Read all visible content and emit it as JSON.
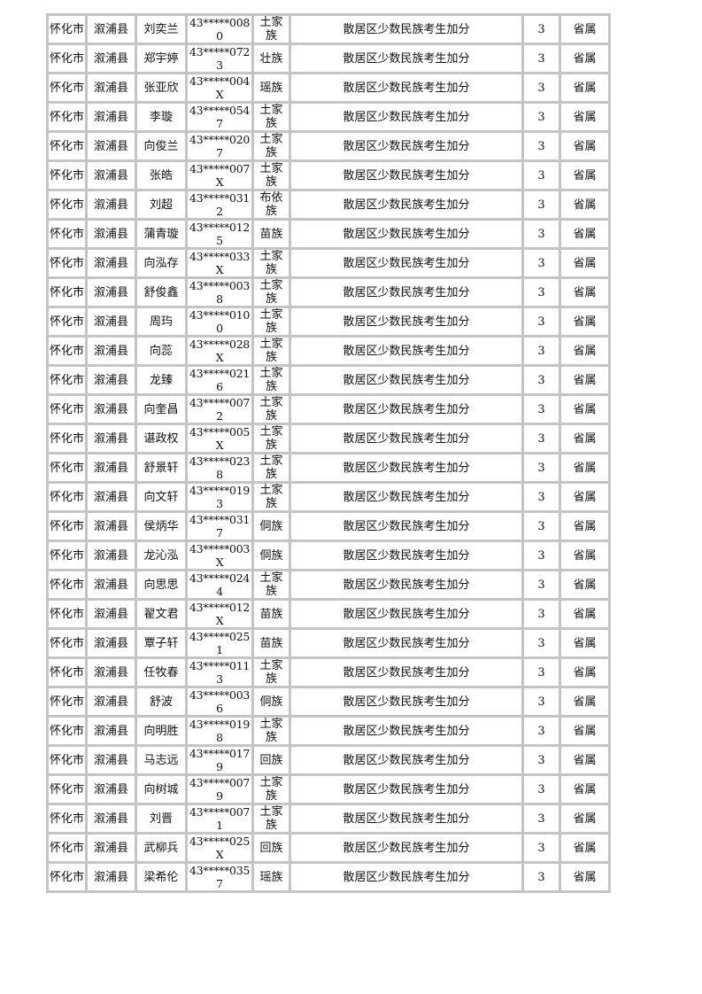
{
  "table": {
    "rows": [
      [
        "怀化市",
        "溆浦县",
        "刘奕兰",
        "43*****0080",
        "土家族",
        "散居区少数民族考生加分",
        "3",
        "省属"
      ],
      [
        "怀化市",
        "溆浦县",
        "郑宇婷",
        "43*****0723",
        "壮族",
        "散居区少数民族考生加分",
        "3",
        "省属"
      ],
      [
        "怀化市",
        "溆浦县",
        "张亚欣",
        "43*****004X",
        "瑶族",
        "散居区少数民族考生加分",
        "3",
        "省属"
      ],
      [
        "怀化市",
        "溆浦县",
        "李璇",
        "43*****0547",
        "土家族",
        "散居区少数民族考生加分",
        "3",
        "省属"
      ],
      [
        "怀化市",
        "溆浦县",
        "向俊兰",
        "43*****0207",
        "土家族",
        "散居区少数民族考生加分",
        "3",
        "省属"
      ],
      [
        "怀化市",
        "溆浦县",
        "张皓",
        "43*****007X",
        "土家族",
        "散居区少数民族考生加分",
        "3",
        "省属"
      ],
      [
        "怀化市",
        "溆浦县",
        "刘超",
        "43*****0312",
        "布依族",
        "散居区少数民族考生加分",
        "3",
        "省属"
      ],
      [
        "怀化市",
        "溆浦县",
        "蒲青璇",
        "43*****0125",
        "苗族",
        "散居区少数民族考生加分",
        "3",
        "省属"
      ],
      [
        "怀化市",
        "溆浦县",
        "向泓存",
        "43*****033X",
        "土家族",
        "散居区少数民族考生加分",
        "3",
        "省属"
      ],
      [
        "怀化市",
        "溆浦县",
        "舒俊鑫",
        "43*****0038",
        "土家族",
        "散居区少数民族考生加分",
        "3",
        "省属"
      ],
      [
        "怀化市",
        "溆浦县",
        "周玙",
        "43*****0100",
        "土家族",
        "散居区少数民族考生加分",
        "3",
        "省属"
      ],
      [
        "怀化市",
        "溆浦县",
        "向蕊",
        "43*****028X",
        "土家族",
        "散居区少数民族考生加分",
        "3",
        "省属"
      ],
      [
        "怀化市",
        "溆浦县",
        "龙臻",
        "43*****0216",
        "土家族",
        "散居区少数民族考生加分",
        "3",
        "省属"
      ],
      [
        "怀化市",
        "溆浦县",
        "向奎昌",
        "43*****0072",
        "土家族",
        "散居区少数民族考生加分",
        "3",
        "省属"
      ],
      [
        "怀化市",
        "溆浦县",
        "谌政权",
        "43*****005X",
        "土家族",
        "散居区少数民族考生加分",
        "3",
        "省属"
      ],
      [
        "怀化市",
        "溆浦县",
        "舒景轩",
        "43*****0238",
        "土家族",
        "散居区少数民族考生加分",
        "3",
        "省属"
      ],
      [
        "怀化市",
        "溆浦县",
        "向文轩",
        "43*****0193",
        "土家族",
        "散居区少数民族考生加分",
        "3",
        "省属"
      ],
      [
        "怀化市",
        "溆浦县",
        "侯炳华",
        "43*****0317",
        "侗族",
        "散居区少数民族考生加分",
        "3",
        "省属"
      ],
      [
        "怀化市",
        "溆浦县",
        "龙沁泓",
        "43*****003X",
        "侗族",
        "散居区少数民族考生加分",
        "3",
        "省属"
      ],
      [
        "怀化市",
        "溆浦县",
        "向思思",
        "43*****0244",
        "土家族",
        "散居区少数民族考生加分",
        "3",
        "省属"
      ],
      [
        "怀化市",
        "溆浦县",
        "翟文君",
        "43*****012X",
        "苗族",
        "散居区少数民族考生加分",
        "3",
        "省属"
      ],
      [
        "怀化市",
        "溆浦县",
        "覃子轩",
        "43*****0251",
        "苗族",
        "散居区少数民族考生加分",
        "3",
        "省属"
      ],
      [
        "怀化市",
        "溆浦县",
        "任牧春",
        "43*****0113",
        "土家族",
        "散居区少数民族考生加分",
        "3",
        "省属"
      ],
      [
        "怀化市",
        "溆浦县",
        "舒波",
        "43*****0036",
        "侗族",
        "散居区少数民族考生加分",
        "3",
        "省属"
      ],
      [
        "怀化市",
        "溆浦县",
        "向明胜",
        "43*****0198",
        "土家族",
        "散居区少数民族考生加分",
        "3",
        "省属"
      ],
      [
        "怀化市",
        "溆浦县",
        "马志远",
        "43*****0179",
        "回族",
        "散居区少数民族考生加分",
        "3",
        "省属"
      ],
      [
        "怀化市",
        "溆浦县",
        "向树城",
        "43*****0079",
        "土家族",
        "散居区少数民族考生加分",
        "3",
        "省属"
      ],
      [
        "怀化市",
        "溆浦县",
        "刘晋",
        "43*****0071",
        "土家族",
        "散居区少数民族考生加分",
        "3",
        "省属"
      ],
      [
        "怀化市",
        "溆浦县",
        "武柳兵",
        "43*****025X",
        "回族",
        "散居区少数民族考生加分",
        "3",
        "省属"
      ],
      [
        "怀化市",
        "溆浦县",
        "梁希伦",
        "43*****0357",
        "瑶族",
        "散居区少数民族考生加分",
        "3",
        "省属"
      ]
    ]
  }
}
